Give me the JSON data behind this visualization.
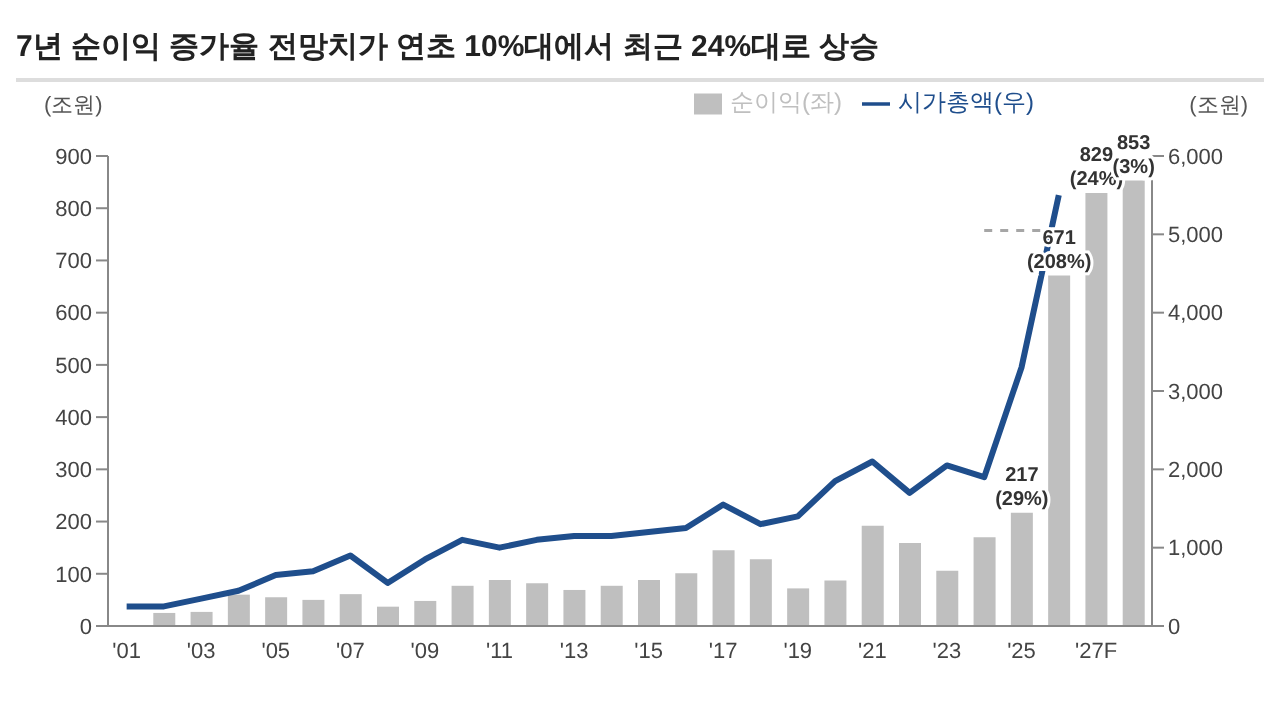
{
  "chart_data": {
    "type": "bar",
    "title": "7년 순이익 증가율 전망치가 연초 10%대에서 최근 24%대로 상승",
    "ylabel": "(조원)",
    "y2label": "(조원)",
    "categories": [
      "'01",
      null,
      "'03",
      null,
      "'05",
      null,
      "'07",
      null,
      "'09",
      null,
      "'11",
      null,
      "'13",
      null,
      "'15",
      null,
      "'17",
      null,
      "'19",
      null,
      "'21",
      null,
      "'23",
      null,
      "'25",
      null,
      "'27F",
      null
    ],
    "series": [
      {
        "name": "순이익(좌)",
        "color": "#bfbfbf",
        "values": [
          null,
          25,
          27,
          60,
          55,
          50,
          61,
          37,
          48,
          77,
          88,
          82,
          69,
          77,
          88,
          101,
          145,
          128,
          72,
          87,
          192,
          159,
          106,
          170,
          217,
          671,
          829,
          853
        ],
        "value_labels": [
          null,
          null,
          null,
          null,
          null,
          null,
          null,
          null,
          null,
          null,
          null,
          null,
          null,
          null,
          null,
          null,
          null,
          null,
          null,
          null,
          null,
          null,
          null,
          null,
          "217\n(29%)",
          "671\n(208%)",
          "829\n(24%)",
          "853\n(3%)"
        ]
      },
      {
        "name": "시가총액(우)",
        "type": "line",
        "axis": "y2",
        "color": "#1f4e8c",
        "values": [
          250,
          250,
          350,
          450,
          650,
          700,
          900,
          550,
          850,
          1100,
          1000,
          1100,
          1150,
          1150,
          1200,
          1250,
          1550,
          1300,
          1400,
          1850,
          2100,
          1700,
          2050,
          1900,
          3300,
          5500,
          null,
          null
        ]
      },
      {
        "type": "line",
        "axis": "y2",
        "color": "#a6a6a6",
        "line_style": "dashed",
        "values": [
          null,
          null,
          null,
          null,
          null,
          null,
          null,
          null,
          null,
          null,
          null,
          null,
          null,
          null,
          null,
          null,
          null,
          null,
          null,
          null,
          null,
          null,
          null,
          5050,
          5050,
          5050,
          null,
          null
        ]
      }
    ],
    "ylim": [
      0,
      900
    ],
    "yticks": [
      0,
      100,
      200,
      300,
      400,
      500,
      600,
      700,
      800,
      900
    ],
    "y2lim": [
      0,
      6000
    ],
    "y2ticks": [
      0,
      {
        "value": 1000,
        "label": "1,000"
      },
      {
        "value": 2000,
        "label": "2,000"
      },
      {
        "value": 3000,
        "label": "3,000"
      },
      {
        "value": 4000,
        "label": "4,000"
      },
      {
        "value": 5000,
        "label": "5,000"
      },
      {
        "value": 6000,
        "label": "6,000"
      }
    ],
    "grid": false,
    "legend": "top",
    "marker": "none"
  }
}
